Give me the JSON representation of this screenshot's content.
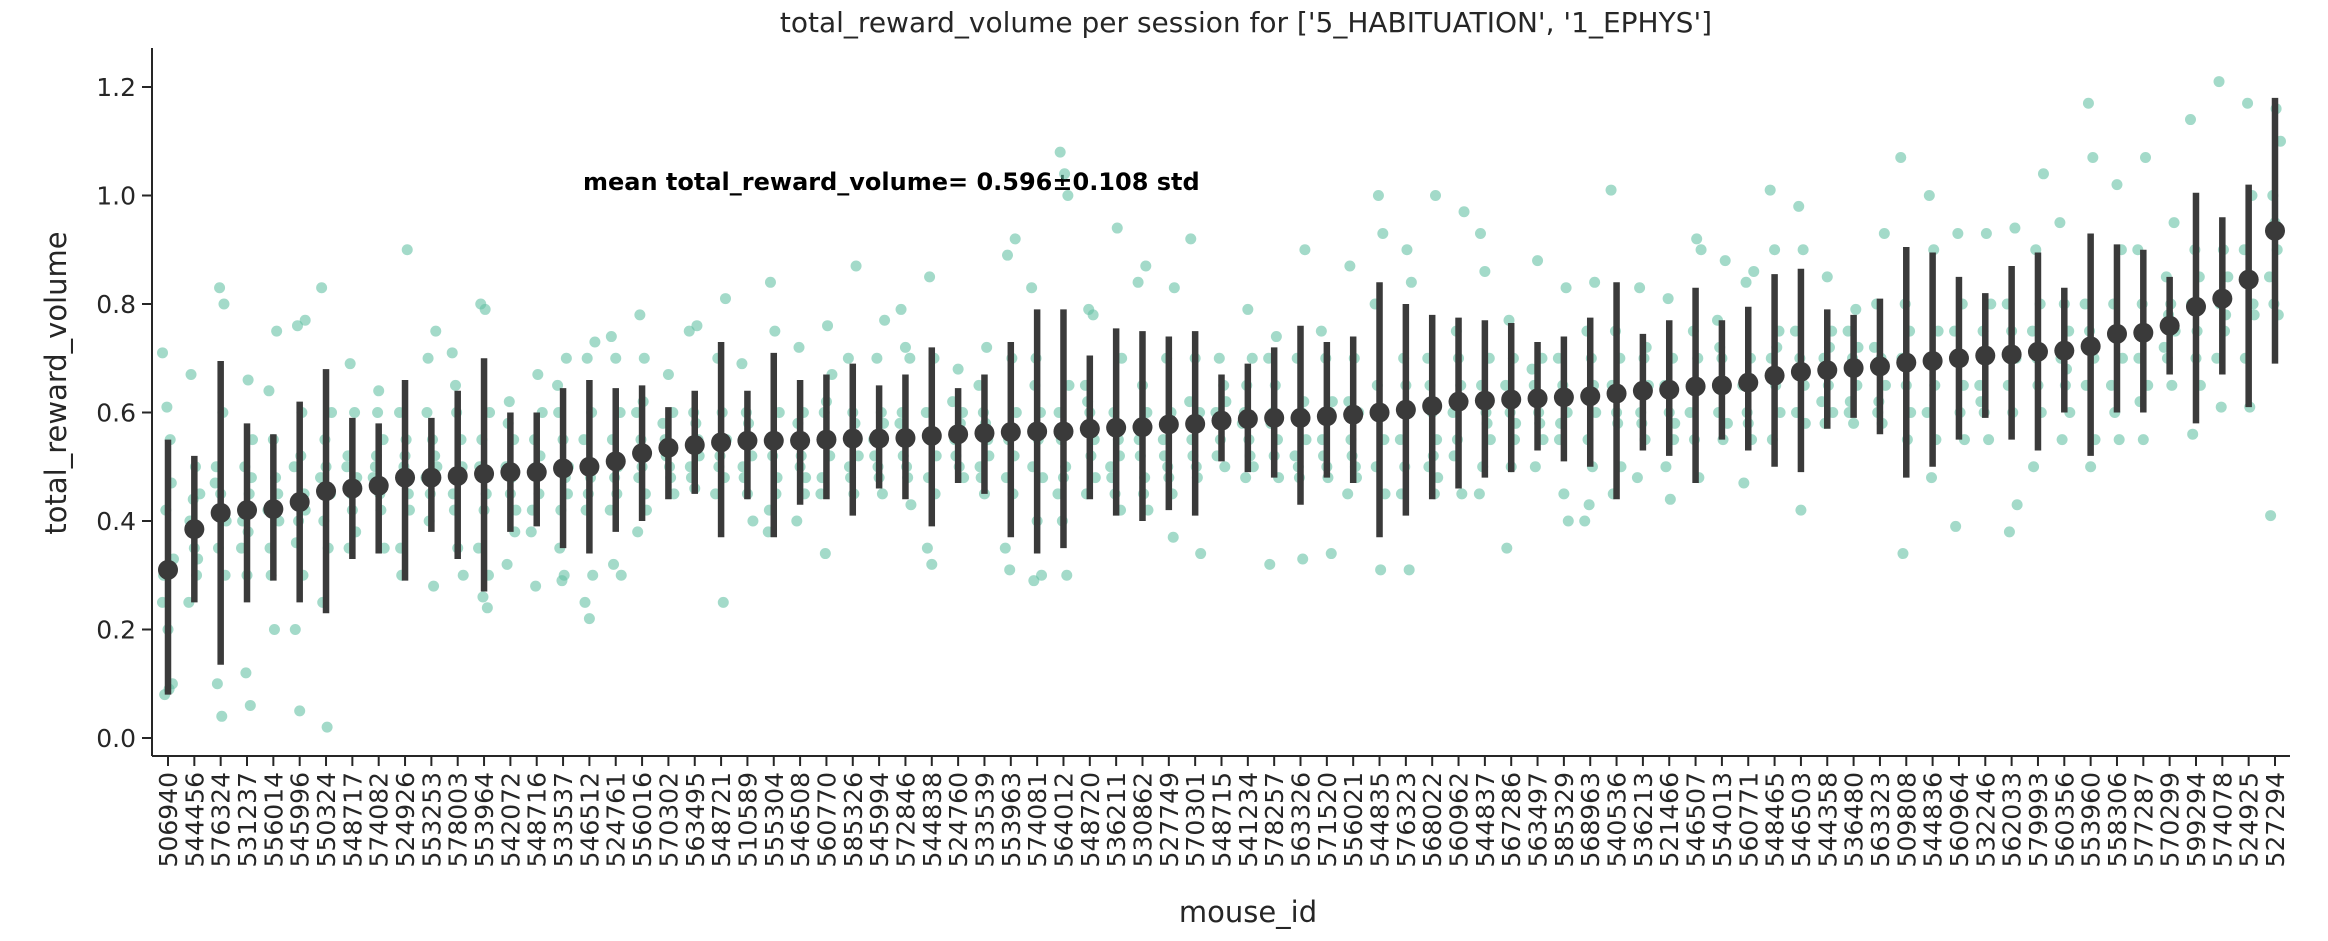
{
  "chart_data": {
    "type": "scatter",
    "title": "total_reward_volume per session for ['5_HABITUATION', '1_EPHYS']",
    "xlabel": "mouse_id",
    "ylabel": "total_reward_volume",
    "ylim": [
      -0.04,
      1.26
    ],
    "yticks": [
      0.0,
      0.2,
      0.4,
      0.6,
      0.8,
      1.0,
      1.2
    ],
    "ytick_labels": [
      "0.0",
      "0.2",
      "0.4",
      "0.6",
      "0.8",
      "1.0",
      "1.2"
    ],
    "grid": false,
    "annotation": "mean total_reward_volume= 0.596±0.108 std",
    "colors": {
      "points": "#66c2a5",
      "summary": "#3a3a3a",
      "axis": "#262626"
    },
    "categories": [
      "506940",
      "544456",
      "576324",
      "531237",
      "556014",
      "545996",
      "550324",
      "548717",
      "574082",
      "524926",
      "553253",
      "578003",
      "553964",
      "542072",
      "548716",
      "533537",
      "546512",
      "524761",
      "556016",
      "570302",
      "563495",
      "548721",
      "510589",
      "555304",
      "546508",
      "560770",
      "585326",
      "545994",
      "572846",
      "544838",
      "524760",
      "533539",
      "553963",
      "574081",
      "564012",
      "548720",
      "536211",
      "530862",
      "527749",
      "570301",
      "548715",
      "541234",
      "578257",
      "563326",
      "571520",
      "556021",
      "544835",
      "576323",
      "568022",
      "560962",
      "544837",
      "567286",
      "563497",
      "585329",
      "568963",
      "540536",
      "536213",
      "521466",
      "546507",
      "554013",
      "560771",
      "548465",
      "546503",
      "544358",
      "536480",
      "563323",
      "509808",
      "544836",
      "560964",
      "532246",
      "562033",
      "579993",
      "560356",
      "553960",
      "558306",
      "577287",
      "570299",
      "599294",
      "574078",
      "524925",
      "527294"
    ],
    "means": [
      0.31,
      0.385,
      0.415,
      0.42,
      0.422,
      0.435,
      0.455,
      0.46,
      0.465,
      0.48,
      0.48,
      0.483,
      0.487,
      0.49,
      0.49,
      0.497,
      0.5,
      0.51,
      0.525,
      0.535,
      0.54,
      0.545,
      0.548,
      0.548,
      0.548,
      0.55,
      0.552,
      0.552,
      0.553,
      0.557,
      0.56,
      0.562,
      0.564,
      0.565,
      0.565,
      0.57,
      0.572,
      0.573,
      0.578,
      0.579,
      0.585,
      0.588,
      0.59,
      0.59,
      0.593,
      0.596,
      0.6,
      0.605,
      0.612,
      0.62,
      0.622,
      0.624,
      0.626,
      0.628,
      0.63,
      0.635,
      0.64,
      0.642,
      0.648,
      0.65,
      0.655,
      0.668,
      0.675,
      0.678,
      0.682,
      0.685,
      0.692,
      0.695,
      0.7,
      0.705,
      0.707,
      0.712,
      0.714,
      0.722,
      0.745,
      0.747,
      0.76,
      0.795,
      0.81,
      0.845,
      0.935
    ],
    "ci_low": [
      0.08,
      0.25,
      0.135,
      0.25,
      0.29,
      0.25,
      0.23,
      0.33,
      0.34,
      0.29,
      0.38,
      0.33,
      0.27,
      0.38,
      0.39,
      0.35,
      0.34,
      0.38,
      0.4,
      0.44,
      0.45,
      0.37,
      0.44,
      0.37,
      0.43,
      0.44,
      0.41,
      0.46,
      0.44,
      0.39,
      0.47,
      0.45,
      0.37,
      0.34,
      0.35,
      0.44,
      0.41,
      0.4,
      0.42,
      0.41,
      0.51,
      0.49,
      0.48,
      0.43,
      0.48,
      0.47,
      0.37,
      0.41,
      0.44,
      0.46,
      0.48,
      0.49,
      0.53,
      0.51,
      0.5,
      0.44,
      0.53,
      0.52,
      0.47,
      0.55,
      0.53,
      0.5,
      0.49,
      0.57,
      0.59,
      0.56,
      0.48,
      0.5,
      0.55,
      0.59,
      0.55,
      0.53,
      0.6,
      0.52,
      0.6,
      0.6,
      0.67,
      0.58,
      0.67,
      0.61,
      0.69
    ],
    "ci_high": [
      0.55,
      0.52,
      0.695,
      0.58,
      0.56,
      0.62,
      0.68,
      0.59,
      0.58,
      0.66,
      0.59,
      0.64,
      0.7,
      0.6,
      0.6,
      0.645,
      0.66,
      0.645,
      0.65,
      0.61,
      0.64,
      0.73,
      0.64,
      0.71,
      0.66,
      0.67,
      0.69,
      0.65,
      0.67,
      0.72,
      0.645,
      0.67,
      0.73,
      0.79,
      0.79,
      0.705,
      0.755,
      0.75,
      0.74,
      0.75,
      0.67,
      0.69,
      0.72,
      0.76,
      0.73,
      0.74,
      0.84,
      0.8,
      0.78,
      0.775,
      0.77,
      0.765,
      0.73,
      0.74,
      0.775,
      0.84,
      0.745,
      0.77,
      0.83,
      0.77,
      0.795,
      0.855,
      0.865,
      0.79,
      0.78,
      0.81,
      0.905,
      0.895,
      0.85,
      0.82,
      0.87,
      0.895,
      0.83,
      0.93,
      0.91,
      0.9,
      0.85,
      1.005,
      0.96,
      1.02,
      1.18
    ],
    "points": [
      [
        0.71,
        0.61,
        0.47,
        0.3,
        0.2,
        0.1,
        0.08,
        0.09,
        0.33,
        0.42,
        0.55,
        0.25
      ],
      [
        0.67,
        0.5,
        0.45,
        0.38,
        0.3,
        0.25,
        0.44,
        0.33,
        0.4,
        0.35
      ],
      [
        0.83,
        0.8,
        0.5,
        0.45,
        0.3,
        0.1,
        0.04,
        0.4,
        0.35,
        0.6,
        0.47
      ],
      [
        0.66,
        0.55,
        0.5,
        0.45,
        0.35,
        0.12,
        0.06,
        0.4,
        0.3,
        0.48,
        0.42,
        0.38
      ],
      [
        0.75,
        0.64,
        0.55,
        0.45,
        0.35,
        0.2,
        0.4,
        0.3,
        0.48,
        0.42
      ],
      [
        0.77,
        0.76,
        0.6,
        0.5,
        0.4,
        0.3,
        0.2,
        0.05,
        0.45,
        0.36,
        0.52,
        0.42
      ],
      [
        0.83,
        0.5,
        0.45,
        0.25,
        0.02,
        0.6,
        0.4,
        0.35,
        0.48,
        0.55
      ],
      [
        0.69,
        0.6,
        0.5,
        0.45,
        0.38,
        0.52,
        0.42,
        0.48,
        0.35
      ],
      [
        0.64,
        0.55,
        0.5,
        0.45,
        0.35,
        0.52,
        0.42,
        0.48,
        0.6
      ],
      [
        0.9,
        0.6,
        0.5,
        0.45,
        0.35,
        0.52,
        0.42,
        0.3,
        0.55
      ],
      [
        0.75,
        0.7,
        0.55,
        0.5,
        0.4,
        0.28,
        0.48,
        0.45,
        0.52,
        0.6
      ],
      [
        0.71,
        0.6,
        0.55,
        0.45,
        0.35,
        0.5,
        0.42,
        0.48,
        0.3,
        0.65
      ],
      [
        0.8,
        0.79,
        0.6,
        0.55,
        0.45,
        0.35,
        0.26,
        0.24,
        0.5,
        0.42,
        0.3
      ],
      [
        0.62,
        0.55,
        0.5,
        0.45,
        0.38,
        0.32,
        0.48,
        0.42,
        0.58
      ],
      [
        0.67,
        0.6,
        0.55,
        0.45,
        0.38,
        0.28,
        0.52,
        0.42,
        0.5
      ],
      [
        0.7,
        0.6,
        0.55,
        0.45,
        0.35,
        0.3,
        0.5,
        0.42,
        0.48,
        0.65,
        0.29
      ],
      [
        0.73,
        0.7,
        0.6,
        0.55,
        0.45,
        0.3,
        0.25,
        0.22,
        0.5,
        0.42,
        0.48
      ],
      [
        0.74,
        0.7,
        0.6,
        0.55,
        0.45,
        0.3,
        0.32,
        0.5,
        0.42,
        0.48
      ],
      [
        0.78,
        0.7,
        0.6,
        0.55,
        0.45,
        0.38,
        0.5,
        0.42,
        0.48,
        0.62
      ],
      [
        0.67,
        0.6,
        0.55,
        0.5,
        0.45,
        0.52,
        0.48,
        0.58
      ],
      [
        0.76,
        0.75,
        0.6,
        0.55,
        0.5,
        0.46,
        0.52,
        0.48,
        0.58
      ],
      [
        0.81,
        0.7,
        0.6,
        0.55,
        0.5,
        0.25,
        0.45,
        0.52,
        0.48
      ],
      [
        0.69,
        0.6,
        0.55,
        0.5,
        0.45,
        0.52,
        0.48,
        0.58,
        0.4
      ],
      [
        0.84,
        0.75,
        0.6,
        0.55,
        0.45,
        0.38,
        0.52,
        0.48,
        0.42
      ],
      [
        0.72,
        0.6,
        0.55,
        0.5,
        0.45,
        0.4,
        0.52,
        0.48,
        0.58
      ],
      [
        0.76,
        0.67,
        0.6,
        0.55,
        0.45,
        0.34,
        0.52,
        0.48,
        0.62
      ],
      [
        0.87,
        0.7,
        0.6,
        0.55,
        0.5,
        0.45,
        0.52,
        0.48,
        0.58
      ],
      [
        0.77,
        0.7,
        0.6,
        0.55,
        0.5,
        0.45,
        0.52,
        0.48,
        0.58
      ],
      [
        0.79,
        0.72,
        0.7,
        0.6,
        0.5,
        0.43,
        0.52,
        0.48,
        0.58
      ],
      [
        0.85,
        0.7,
        0.6,
        0.55,
        0.45,
        0.35,
        0.32,
        0.52,
        0.48
      ],
      [
        0.68,
        0.6,
        0.55,
        0.5,
        0.48,
        0.52,
        0.58,
        0.62
      ],
      [
        0.72,
        0.65,
        0.6,
        0.55,
        0.5,
        0.45,
        0.52,
        0.48,
        0.58
      ],
      [
        0.92,
        0.89,
        0.7,
        0.6,
        0.55,
        0.45,
        0.35,
        0.31,
        0.52,
        0.48
      ],
      [
        0.83,
        0.7,
        0.6,
        0.5,
        0.4,
        0.3,
        0.29,
        0.55,
        0.48,
        0.65
      ],
      [
        1.08,
        1.04,
        0.65,
        0.55,
        0.5,
        0.45,
        0.4,
        0.3,
        0.6,
        0.48,
        1.0
      ],
      [
        0.79,
        0.78,
        0.65,
        0.6,
        0.55,
        0.45,
        0.52,
        0.48,
        0.62
      ],
      [
        0.94,
        0.7,
        0.6,
        0.55,
        0.5,
        0.45,
        0.52,
        0.48,
        0.58,
        0.42
      ],
      [
        0.87,
        0.84,
        0.65,
        0.6,
        0.55,
        0.45,
        0.42,
        0.52,
        0.48
      ],
      [
        0.83,
        0.7,
        0.6,
        0.55,
        0.5,
        0.45,
        0.52,
        0.48,
        0.37
      ],
      [
        0.92,
        0.7,
        0.6,
        0.55,
        0.5,
        0.34,
        0.52,
        0.48,
        0.62
      ],
      [
        0.7,
        0.65,
        0.6,
        0.55,
        0.5,
        0.52,
        0.58,
        0.62
      ],
      [
        0.79,
        0.7,
        0.6,
        0.55,
        0.5,
        0.48,
        0.52,
        0.58,
        0.65
      ],
      [
        0.74,
        0.7,
        0.6,
        0.55,
        0.32,
        0.52,
        0.48,
        0.58,
        0.65
      ],
      [
        0.9,
        0.7,
        0.6,
        0.55,
        0.5,
        0.33,
        0.52,
        0.48,
        0.62
      ],
      [
        0.75,
        0.7,
        0.6,
        0.55,
        0.5,
        0.34,
        0.52,
        0.48,
        0.62
      ],
      [
        0.87,
        0.7,
        0.6,
        0.55,
        0.5,
        0.45,
        0.52,
        0.48,
        0.62
      ],
      [
        1.0,
        0.93,
        0.8,
        0.6,
        0.55,
        0.5,
        0.31,
        0.45,
        0.65
      ],
      [
        0.9,
        0.84,
        0.7,
        0.6,
        0.55,
        0.5,
        0.31,
        0.45,
        0.65
      ],
      [
        1.0,
        0.7,
        0.6,
        0.55,
        0.5,
        0.52,
        0.48,
        0.65,
        0.45
      ],
      [
        0.97,
        0.75,
        0.65,
        0.6,
        0.55,
        0.45,
        0.52,
        0.7
      ],
      [
        0.93,
        0.86,
        0.7,
        0.65,
        0.6,
        0.55,
        0.5,
        0.58,
        0.45
      ],
      [
        0.77,
        0.7,
        0.65,
        0.6,
        0.55,
        0.35,
        0.5,
        0.58
      ],
      [
        0.88,
        0.7,
        0.65,
        0.6,
        0.55,
        0.5,
        0.58,
        0.68
      ],
      [
        0.83,
        0.7,
        0.65,
        0.6,
        0.55,
        0.45,
        0.4,
        0.58
      ],
      [
        0.84,
        0.75,
        0.7,
        0.6,
        0.55,
        0.5,
        0.4,
        0.43,
        0.65
      ],
      [
        1.01,
        0.75,
        0.7,
        0.65,
        0.6,
        0.5,
        0.45,
        0.58
      ],
      [
        0.83,
        0.7,
        0.65,
        0.6,
        0.55,
        0.48,
        0.58,
        0.72
      ],
      [
        0.81,
        0.7,
        0.65,
        0.6,
        0.55,
        0.5,
        0.44,
        0.58
      ],
      [
        0.92,
        0.9,
        0.75,
        0.7,
        0.6,
        0.55,
        0.48,
        0.65
      ],
      [
        0.88,
        0.77,
        0.7,
        0.65,
        0.6,
        0.55,
        0.58,
        0.72
      ],
      [
        0.86,
        0.84,
        0.7,
        0.65,
        0.6,
        0.55,
        0.47,
        0.58
      ],
      [
        1.01,
        0.9,
        0.75,
        0.7,
        0.65,
        0.6,
        0.55,
        0.72
      ],
      [
        0.98,
        0.9,
        0.75,
        0.7,
        0.65,
        0.6,
        0.42,
        0.58
      ],
      [
        0.85,
        0.75,
        0.7,
        0.65,
        0.6,
        0.58,
        0.72,
        0.62
      ],
      [
        0.79,
        0.75,
        0.7,
        0.65,
        0.6,
        0.58,
        0.72,
        0.62
      ],
      [
        0.93,
        0.8,
        0.7,
        0.65,
        0.6,
        0.58,
        0.72,
        0.62
      ],
      [
        1.07,
        0.8,
        0.75,
        0.7,
        0.65,
        0.6,
        0.34,
        0.55
      ],
      [
        1.0,
        0.9,
        0.75,
        0.7,
        0.65,
        0.6,
        0.48,
        0.55
      ],
      [
        0.93,
        0.8,
        0.75,
        0.7,
        0.65,
        0.39,
        0.6,
        0.55
      ],
      [
        0.93,
        0.8,
        0.75,
        0.7,
        0.65,
        0.6,
        0.55,
        0.62
      ],
      [
        0.94,
        0.8,
        0.75,
        0.7,
        0.65,
        0.6,
        0.43,
        0.38
      ],
      [
        1.04,
        0.9,
        0.8,
        0.75,
        0.7,
        0.6,
        0.5,
        0.65
      ],
      [
        0.95,
        0.8,
        0.75,
        0.7,
        0.65,
        0.6,
        0.55,
        0.68
      ],
      [
        1.17,
        1.07,
        0.8,
        0.75,
        0.7,
        0.65,
        0.5,
        0.55
      ],
      [
        1.02,
        0.9,
        0.8,
        0.75,
        0.7,
        0.6,
        0.55,
        0.65
      ],
      [
        1.07,
        0.9,
        0.8,
        0.75,
        0.7,
        0.55,
        0.65,
        0.62
      ],
      [
        0.95,
        0.85,
        0.8,
        0.75,
        0.7,
        0.65,
        0.72,
        0.78
      ],
      [
        1.14,
        0.9,
        0.85,
        0.8,
        0.7,
        0.65,
        0.56,
        0.75
      ],
      [
        1.21,
        0.9,
        0.85,
        0.8,
        0.75,
        0.7,
        0.61,
        0.78
      ],
      [
        1.17,
        1.0,
        0.9,
        0.85,
        0.8,
        0.7,
        0.61,
        0.78
      ],
      [
        1.16,
        1.1,
        1.0,
        0.9,
        0.85,
        0.8,
        0.78,
        0.41,
        0.95
      ]
    ]
  }
}
